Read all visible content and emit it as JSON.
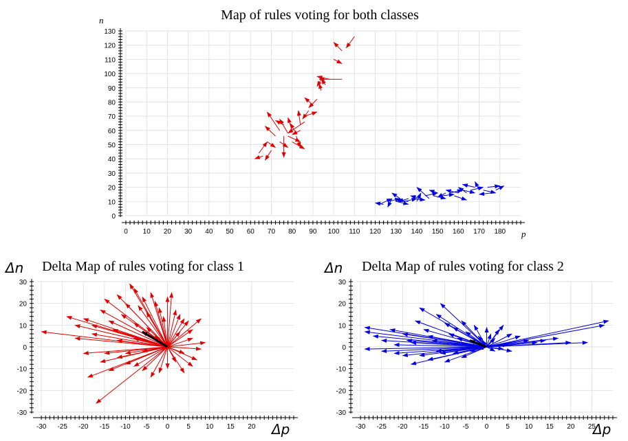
{
  "chart_data": [
    {
      "type": "vector",
      "title": "Map of rules voting for both classes",
      "xlabel": "p",
      "ylabel": "n",
      "xlim": [
        0,
        190
      ],
      "ylim": [
        0,
        130
      ],
      "xticks": [
        0,
        10,
        20,
        30,
        40,
        50,
        60,
        70,
        80,
        90,
        100,
        110,
        120,
        130,
        140,
        150,
        160,
        170,
        180
      ],
      "yticks": [
        0,
        10,
        20,
        30,
        40,
        50,
        60,
        70,
        80,
        90,
        100,
        110,
        120,
        130
      ],
      "grid": true,
      "series": [
        {
          "color": "#e00000",
          "arrows": [
            [
              64,
              44,
              68,
              52
            ],
            [
              66,
              42,
              62,
              40
            ],
            [
              70,
              46,
              67,
              39
            ],
            [
              68,
              52,
              72,
              48
            ],
            [
              72,
              56,
              67,
              63
            ],
            [
              74,
              60,
              68,
              73
            ],
            [
              76,
              64,
              72,
              67
            ],
            [
              74,
              52,
              78,
              48
            ],
            [
              76,
              56,
              76,
              41
            ],
            [
              78,
              58,
              74,
              68
            ],
            [
              78,
              56,
              84,
              52
            ],
            [
              80,
              60,
              78,
              69
            ],
            [
              80,
              52,
              86,
              47
            ],
            [
              82,
              58,
              79,
              65
            ],
            [
              84,
              60,
              80,
              57
            ],
            [
              84,
              64,
              83,
              74
            ],
            [
              82,
              56,
              84,
              48
            ],
            [
              86,
              70,
              92,
              73
            ],
            [
              86,
              66,
              78,
              58
            ],
            [
              88,
              74,
              85,
              68
            ],
            [
              90,
              78,
              86,
              83
            ],
            [
              92,
              82,
              88,
              76
            ],
            [
              94,
              88,
              93,
              93
            ],
            [
              96,
              92,
              94,
              96
            ],
            [
              94,
              96,
              92,
              91
            ],
            [
              98,
              96,
              92,
              98
            ],
            [
              100,
              110,
              104,
              107
            ],
            [
              104,
              116,
              100,
              122
            ],
            [
              110,
              126,
              106,
              118
            ],
            [
              104,
              96,
              93,
              96
            ]
          ]
        },
        {
          "color": "#0000e0",
          "arrows": [
            [
              122,
              8,
              128,
              12
            ],
            [
              124,
              8,
              120,
              9
            ],
            [
              126,
              10,
              132,
              12
            ],
            [
              128,
              12,
              126,
              6
            ],
            [
              130,
              10,
              136,
              8
            ],
            [
              132,
              12,
              128,
              16
            ],
            [
              134,
              10,
              140,
              12
            ],
            [
              136,
              12,
              131,
              10
            ],
            [
              138,
              12,
              144,
              11
            ],
            [
              140,
              10,
              142,
              16
            ],
            [
              142,
              12,
              137,
              14
            ],
            [
              144,
              14,
              150,
              16
            ],
            [
              146,
              12,
              140,
              20
            ],
            [
              148,
              14,
              154,
              12
            ],
            [
              150,
              16,
              146,
              18
            ],
            [
              152,
              14,
              158,
              15
            ],
            [
              154,
              16,
              150,
              13
            ],
            [
              156,
              16,
              162,
              18
            ],
            [
              158,
              14,
              164,
              11
            ],
            [
              160,
              16,
              154,
              18
            ],
            [
              162,
              18,
              168,
              16
            ],
            [
              164,
              16,
              160,
              20
            ],
            [
              166,
              18,
              172,
              20
            ],
            [
              168,
              20,
              162,
              22
            ],
            [
              170,
              18,
              168,
              24
            ],
            [
              172,
              18,
              178,
              16
            ],
            [
              174,
              20,
              180,
              21
            ],
            [
              176,
              16,
              170,
              15
            ],
            [
              178,
              18,
              182,
              21
            ],
            [
              136,
              10,
              130,
              11
            ]
          ]
        }
      ]
    },
    {
      "type": "vector",
      "title": "Delta Map of rules voting for class 1",
      "xlabel": "Δp",
      "ylabel": "Δn",
      "xlim": [
        -31,
        30
      ],
      "ylim": [
        -30,
        30
      ],
      "xticks": [
        -30,
        -25,
        -20,
        -15,
        -10,
        -5,
        0,
        5,
        10,
        15,
        20
      ],
      "yticks": [
        -30,
        -20,
        -10,
        0,
        10,
        20,
        30
      ],
      "grid": true,
      "series": [
        {
          "color": "#e00000",
          "arrows": [
            [
              -30,
              7
            ],
            [
              -24,
              14
            ],
            [
              -22,
              10
            ],
            [
              -20,
              13
            ],
            [
              -18,
              10
            ],
            [
              -16,
              17
            ],
            [
              -15,
              22
            ],
            [
              -14,
              12
            ],
            [
              -13,
              8
            ],
            [
              -12,
              24
            ],
            [
              -11,
              15
            ],
            [
              -10,
              20
            ],
            [
              -9,
              29
            ],
            [
              -8,
              27
            ],
            [
              -8,
              11
            ],
            [
              -7,
              19
            ],
            [
              -6,
              23
            ],
            [
              -5,
              16
            ],
            [
              -4,
              25
            ],
            [
              -3,
              21
            ],
            [
              -2,
              18
            ],
            [
              -1,
              14
            ],
            [
              0,
              23
            ],
            [
              1,
              25
            ],
            [
              2,
              17
            ],
            [
              3,
              15
            ],
            [
              4,
              13
            ],
            [
              5,
              12
            ],
            [
              6,
              8
            ],
            [
              8,
              13
            ],
            [
              9,
              2
            ],
            [
              8,
              -1
            ],
            [
              7,
              -6
            ],
            [
              6,
              -9
            ],
            [
              4,
              -12
            ],
            [
              2,
              -7
            ],
            [
              0,
              -10
            ],
            [
              -2,
              -12
            ],
            [
              -4,
              -14
            ],
            [
              -6,
              -11
            ],
            [
              -8,
              -9
            ],
            [
              -10,
              -8
            ],
            [
              -12,
              -5
            ],
            [
              -14,
              -11
            ],
            [
              -16,
              -7
            ],
            [
              -17,
              -26
            ],
            [
              -19,
              -14
            ],
            [
              -20,
              -3
            ],
            [
              -15,
              -3
            ],
            [
              -10,
              -3
            ],
            [
              -6,
              -2
            ],
            [
              -3,
              5
            ],
            [
              -18,
              6
            ],
            [
              -22,
              4
            ],
            [
              -12,
              3
            ],
            [
              -8,
              4
            ],
            [
              -5,
              9
            ],
            [
              3,
              7
            ],
            [
              6,
              4
            ],
            [
              4,
              -3
            ]
          ],
          "mean": [
            -6,
            7
          ]
        }
      ]
    },
    {
      "type": "vector",
      "title": "Delta Map of rules voting for class 2",
      "xlabel": "Δp",
      "ylabel": "Δn",
      "xlim": [
        -31,
        30
      ],
      "ylim": [
        -30,
        30
      ],
      "xticks": [
        -30,
        -25,
        -20,
        -15,
        -10,
        -5,
        0,
        5,
        10,
        15,
        20,
        25
      ],
      "yticks": [
        -30,
        -20,
        -10,
        0,
        10,
        20,
        30
      ],
      "grid": true,
      "series": [
        {
          "color": "#0000e0",
          "arrows": [
            [
              -29,
              9
            ],
            [
              -29,
              7
            ],
            [
              -29,
              -1
            ],
            [
              -27,
              5
            ],
            [
              -25,
              3
            ],
            [
              -23,
              8
            ],
            [
              -22,
              1
            ],
            [
              -20,
              6
            ],
            [
              -19,
              3
            ],
            [
              -18,
              2
            ],
            [
              -17,
              12
            ],
            [
              -16,
              18
            ],
            [
              -15,
              8
            ],
            [
              -14,
              5
            ],
            [
              -13,
              3
            ],
            [
              -12,
              15
            ],
            [
              -11,
              20
            ],
            [
              -10,
              11
            ],
            [
              -9,
              6
            ],
            [
              -8,
              9
            ],
            [
              -7,
              4
            ],
            [
              -6,
              12
            ],
            [
              -5,
              7
            ],
            [
              -4,
              3
            ],
            [
              -3,
              10
            ],
            [
              -2,
              5
            ],
            [
              -1,
              3
            ],
            [
              0,
              9
            ],
            [
              1,
              6
            ],
            [
              2,
              4
            ],
            [
              3,
              8
            ],
            [
              4,
              10
            ],
            [
              6,
              6
            ],
            [
              8,
              5
            ],
            [
              10,
              3
            ],
            [
              12,
              2
            ],
            [
              14,
              3
            ],
            [
              17,
              4
            ],
            [
              20,
              2
            ],
            [
              24,
              2
            ],
            [
              28,
              10
            ],
            [
              29,
              12
            ],
            [
              -18,
              -8
            ],
            [
              -16,
              -4
            ],
            [
              -14,
              -6
            ],
            [
              -12,
              -2
            ],
            [
              -10,
              -7
            ],
            [
              -8,
              -3
            ],
            [
              -6,
              -5
            ],
            [
              -4,
              -2
            ],
            [
              -2,
              -1
            ],
            [
              2,
              -2
            ],
            [
              4,
              -1
            ],
            [
              6,
              -2
            ],
            [
              -22,
              -3
            ],
            [
              -25,
              -2
            ],
            [
              -20,
              -4
            ],
            [
              -11,
              -3
            ],
            [
              5,
              1
            ]
          ],
          "mean": [
            -4,
            3
          ]
        }
      ]
    }
  ]
}
